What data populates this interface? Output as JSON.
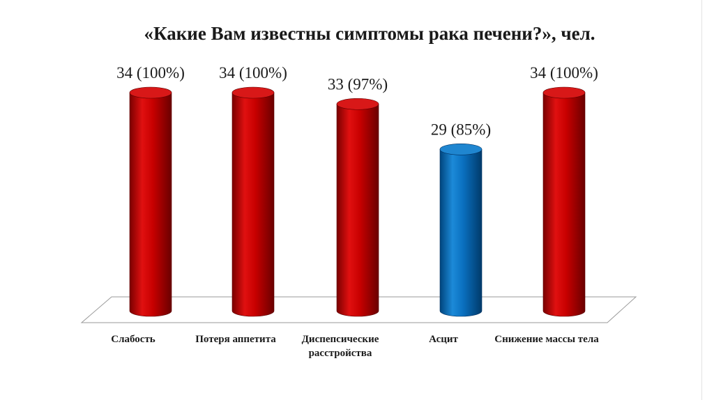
{
  "chart_data": {
    "type": "bar",
    "title": "«Какие Вам известны симптомы рака печени?», чел.",
    "categories": [
      "Слабость",
      "Потеря аппетита",
      "Диспепсические расстройства",
      "Асцит",
      "Снижение массы тела"
    ],
    "series": [
      {
        "values": [
          34,
          34,
          33,
          29,
          34
        ]
      }
    ],
    "data_labels": [
      "34 (100%)",
      "34 (100%)",
      "33 (97%)",
      "29 (85%)",
      "34 (100%)"
    ],
    "bar_colors": [
      "#c00000",
      "#c00000",
      "#c00000",
      "#0070c0",
      "#c00000"
    ],
    "ylim": [
      0,
      34
    ],
    "bar_shape": "cylinder",
    "grid": false
  }
}
